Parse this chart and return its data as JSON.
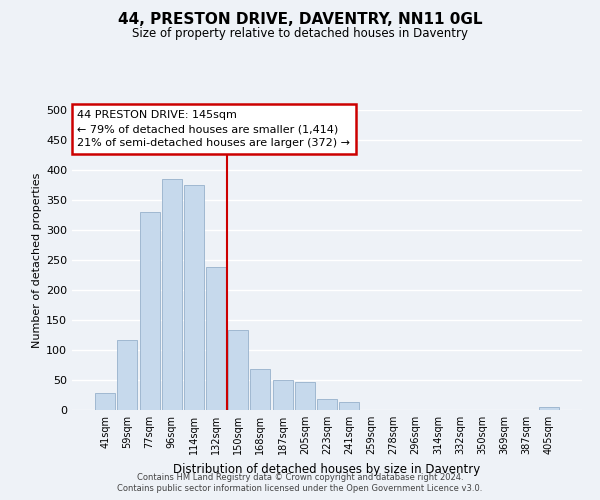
{
  "title": "44, PRESTON DRIVE, DAVENTRY, NN11 0GL",
  "subtitle": "Size of property relative to detached houses in Daventry",
  "xlabel": "Distribution of detached houses by size in Daventry",
  "ylabel": "Number of detached properties",
  "bar_color": "#c6d9ec",
  "bar_edge_color": "#a0b8d0",
  "bin_labels": [
    "41sqm",
    "59sqm",
    "77sqm",
    "96sqm",
    "114sqm",
    "132sqm",
    "150sqm",
    "168sqm",
    "187sqm",
    "205sqm",
    "223sqm",
    "241sqm",
    "259sqm",
    "278sqm",
    "296sqm",
    "314sqm",
    "332sqm",
    "350sqm",
    "369sqm",
    "387sqm",
    "405sqm"
  ],
  "bar_heights": [
    28,
    116,
    330,
    385,
    375,
    238,
    133,
    68,
    50,
    46,
    19,
    13,
    0,
    0,
    0,
    0,
    0,
    0,
    0,
    0,
    5
  ],
  "ylim": [
    0,
    500
  ],
  "yticks": [
    0,
    50,
    100,
    150,
    200,
    250,
    300,
    350,
    400,
    450,
    500
  ],
  "property_label": "44 PRESTON DRIVE: 145sqm",
  "annotation_line1": "← 79% of detached houses are smaller (1,414)",
  "annotation_line2": "21% of semi-detached houses are larger (372) →",
  "vline_x": 5.5,
  "footer_line1": "Contains HM Land Registry data © Crown copyright and database right 2024.",
  "footer_line2": "Contains public sector information licensed under the Open Government Licence v3.0.",
  "background_color": "#eef2f7",
  "grid_color": "#ffffff",
  "vline_color": "#cc0000",
  "annotation_box_facecolor": "#ffffff",
  "annotation_box_edgecolor": "#cc0000"
}
